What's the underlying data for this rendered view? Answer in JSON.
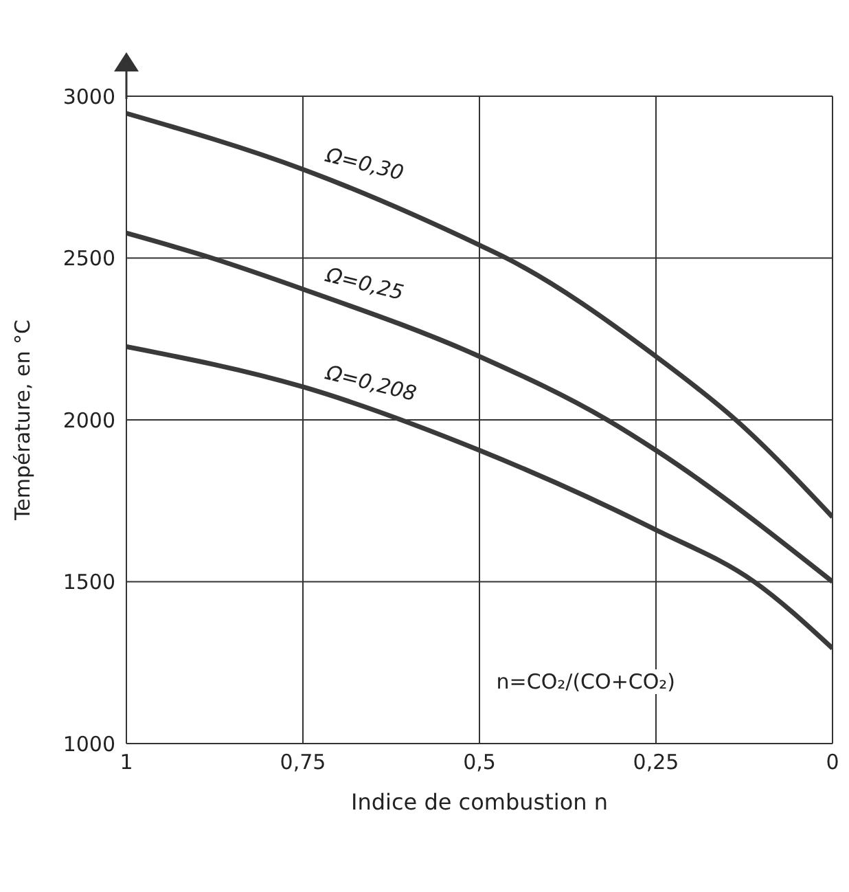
{
  "chart_data": {
    "type": "line",
    "xlabel": "Indice de combustion n",
    "ylabel": "Température, en °C",
    "xlim": [
      1,
      0
    ],
    "ylim": [
      1000,
      3000
    ],
    "xticks": [
      {
        "value": 1,
        "label": "1"
      },
      {
        "value": 0.75,
        "label": "0,75"
      },
      {
        "value": 0.5,
        "label": "0,5"
      },
      {
        "value": 0.25,
        "label": "0,25"
      },
      {
        "value": 0,
        "label": "0"
      }
    ],
    "yticks": [
      1000,
      1500,
      2000,
      2500,
      3000
    ],
    "grid": true,
    "marker": "none",
    "line_style": "solid",
    "annotations": [
      "n=CO₂/(CO+CO₂)"
    ],
    "series": [
      {
        "name": "Ω=0,30",
        "color": "#3a3a3a",
        "x": [
          1,
          0.75,
          0.5,
          0.462,
          0.25,
          0.137,
          0
        ],
        "values": [
          2947,
          2774,
          2540,
          2500,
          2196,
          2000,
          1700
        ]
      },
      {
        "name": "Ω=0,25",
        "color": "#3a3a3a",
        "x": [
          1,
          0.879,
          0.75,
          0.5,
          0.319,
          0.25,
          0
        ],
        "values": [
          2577,
          2500,
          2404,
          2196,
          2000,
          1906,
          1500
        ]
      },
      {
        "name": "Ω=0,208",
        "color": "#3a3a3a",
        "x": [
          1,
          0.75,
          0.5,
          0.25,
          0.111,
          0
        ],
        "values": [
          2226,
          2102,
          1906,
          1660,
          1500,
          1294
        ]
      }
    ]
  }
}
